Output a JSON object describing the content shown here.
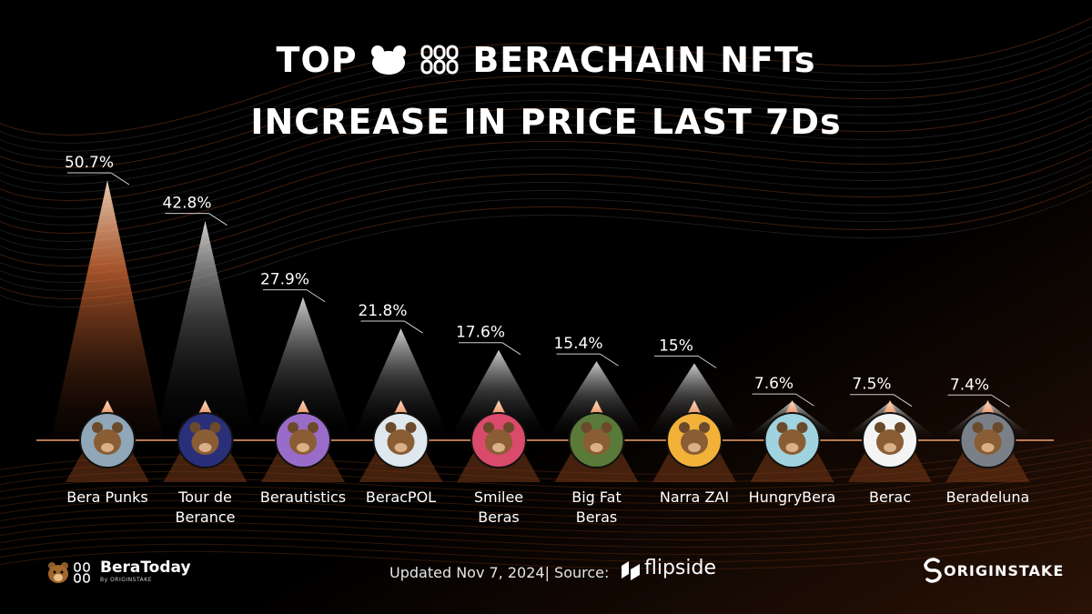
{
  "title_line1": "TOP",
  "title_line1b": "BERACHAIN NFTs",
  "title_line2": "INCREASE IN PRICE LAST 7Ds",
  "footer": {
    "updated": "Updated Nov 7, 2024| Source:",
    "source_brand": "flipside",
    "left_brand": "BeraToday",
    "left_brand_sub": "By ORIGINSTAKE",
    "right_brand": "ORIGINSTAKE"
  },
  "colors": {
    "accent": "#e8753a",
    "background": "#000000",
    "axis": "#f0a070"
  },
  "chart_data": {
    "type": "bar",
    "title": "TOP BERACHAIN NFTs INCREASE IN PRICE LAST 7Ds",
    "categories": [
      "Bera Punks",
      "Tour de Berance",
      "Berautistics",
      "BeracPOL",
      "Smilee Beras",
      "Big Fat Beras",
      "Narra ZAI",
      "HungryBera",
      "Berac",
      "Beradeluna"
    ],
    "category_lines": [
      [
        "Bera Punks"
      ],
      [
        "Tour de",
        "Berance"
      ],
      [
        "Berautistics"
      ],
      [
        "BeracPOL"
      ],
      [
        "Smilee",
        "Beras"
      ],
      [
        "Big Fat",
        "Beras"
      ],
      [
        "Narra ZAI"
      ],
      [
        "HungryBera"
      ],
      [
        "Berac"
      ],
      [
        "Beradeluna"
      ]
    ],
    "values": [
      50.7,
      42.8,
      27.9,
      21.8,
      17.6,
      15.4,
      15,
      7.6,
      7.5,
      7.4
    ],
    "value_labels": [
      "50.7%",
      "42.8%",
      "27.9%",
      "21.8%",
      "17.6%",
      "15.4%",
      "15%",
      "7.6%",
      "7.5%",
      "7.4%"
    ],
    "unit": "%",
    "icons": [
      "bera-punks-icon",
      "tour-de-berance-icon",
      "berautistics-icon",
      "beracpol-icon",
      "smilee-beras-icon",
      "big-fat-beras-icon",
      "narra-zai-icon",
      "hungrybera-icon",
      "berac-icon",
      "beradeluna-icon"
    ],
    "icon_colors": [
      "#8fa7b8",
      "#2a2f7a",
      "#9a6cc9",
      "#dfe8ef",
      "#d94a6b",
      "#5a7a3a",
      "#f2b23a",
      "#9fd3df",
      "#f4f4f4",
      "#7a8088"
    ]
  }
}
